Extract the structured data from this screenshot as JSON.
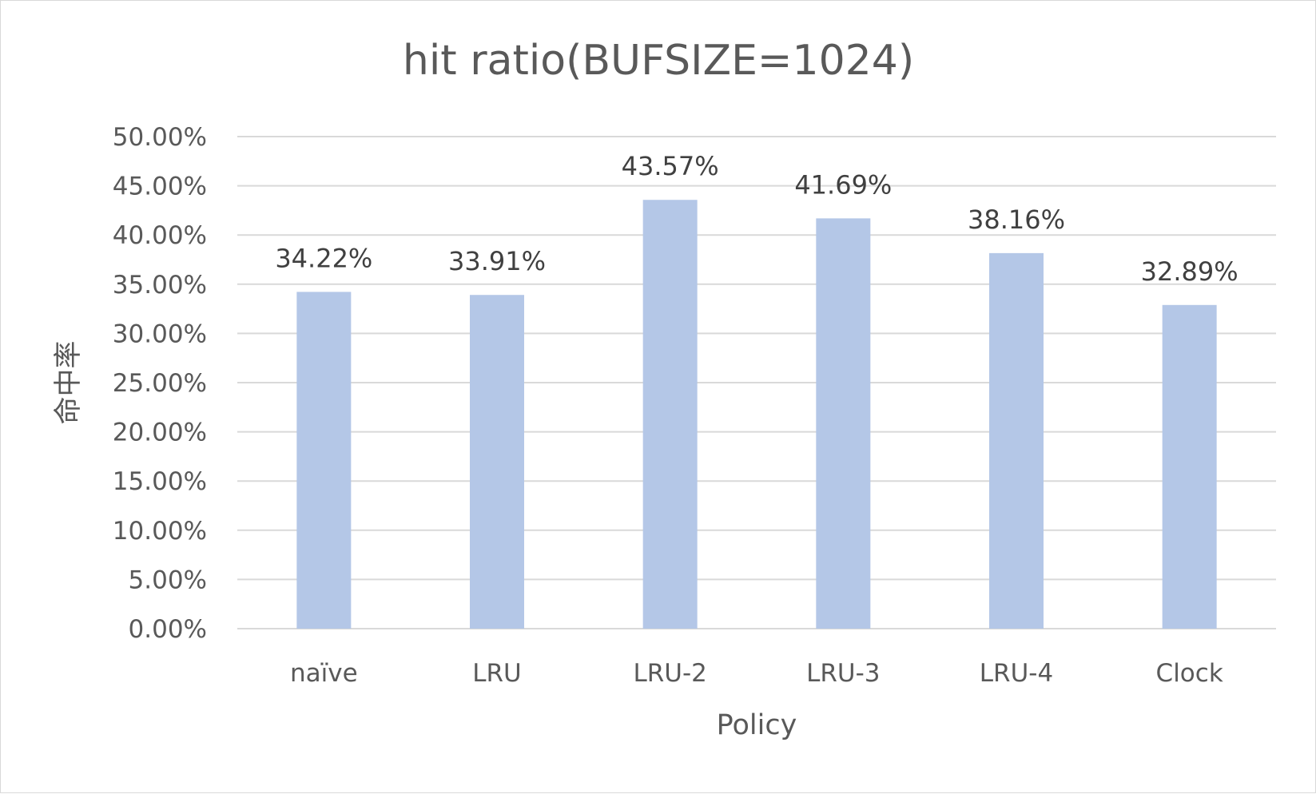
{
  "chart_data": {
    "type": "bar",
    "title": "hit ratio(BUFSIZE=1024)",
    "xlabel": "Policy",
    "ylabel": "命中率",
    "categories": [
      "naïve",
      "LRU",
      "LRU-2",
      "LRU-3",
      "LRU-4",
      "Clock"
    ],
    "values": [
      34.22,
      33.91,
      43.57,
      41.69,
      38.16,
      32.89
    ],
    "data_labels": [
      "34.22%",
      "33.91%",
      "43.57%",
      "41.69%",
      "38.16%",
      "32.89%"
    ],
    "ylim": [
      0,
      50
    ],
    "yticks": [
      0,
      5,
      10,
      15,
      20,
      25,
      30,
      35,
      40,
      45,
      50
    ],
    "ytick_labels": [
      "0.00%",
      "5.00%",
      "10.00%",
      "15.00%",
      "20.00%",
      "25.00%",
      "30.00%",
      "35.00%",
      "40.00%",
      "45.00%",
      "50.00%"
    ],
    "grid": true,
    "legend": "none",
    "bar_color": "#b4c7e7",
    "grid_color": "#d9d9d9",
    "text_color": "#595959",
    "label_color": "#404040"
  }
}
